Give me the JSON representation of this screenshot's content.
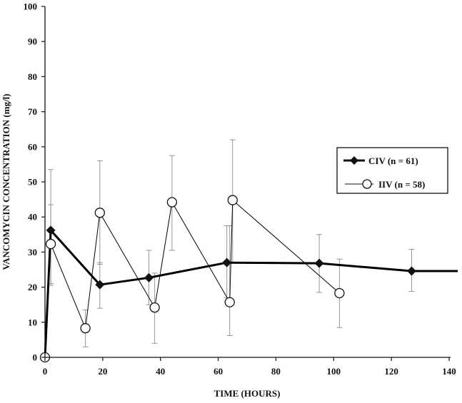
{
  "chart_data": {
    "type": "line",
    "xlabel": "TIME (HOURS)",
    "ylabel": "VANCOMYCIN CONCENTRATION (mg/l)",
    "xlim": [
      0,
      140
    ],
    "ylim": [
      0,
      100
    ],
    "xticks": [
      0,
      20,
      40,
      60,
      80,
      100,
      120,
      140
    ],
    "yticks": [
      0,
      10,
      20,
      30,
      40,
      50,
      60,
      70,
      80,
      90,
      100
    ],
    "grid": false,
    "legend_position": "right",
    "series": [
      {
        "name": "CIV (n = 61)",
        "marker": "filled-diamond",
        "line": "thick",
        "color": "#000000",
        "points": [
          {
            "x": 0,
            "y": 0
          },
          {
            "x": 2,
            "y": 36.2,
            "err": [
              20.5,
              43.5
            ]
          },
          {
            "x": 19,
            "y": 20.7,
            "err": [
              14.0,
              27.0
            ]
          },
          {
            "x": 36,
            "y": 22.7,
            "err": [
              15.0,
              30.5
            ]
          },
          {
            "x": 63,
            "y": 27.0,
            "err": [
              17.0,
              37.5
            ]
          },
          {
            "x": 95,
            "y": 26.8,
            "err": [
              18.5,
              35.0
            ]
          },
          {
            "x": 127,
            "y": 24.6,
            "err": [
              18.8,
              30.8
            ]
          },
          {
            "x": 143,
            "y": 24.6
          }
        ]
      },
      {
        "name": "IIV (n = 58)",
        "marker": "open-circle",
        "line": "thin",
        "color": "#000000",
        "points": [
          {
            "x": 0,
            "y": 0
          },
          {
            "x": 2,
            "y": 32.3,
            "err": [
              21.0,
              53.5
            ]
          },
          {
            "x": 14,
            "y": 8.3,
            "err": [
              3.0,
              13.5
            ]
          },
          {
            "x": 19,
            "y": 41.2,
            "err": [
              26.5,
              56.0
            ]
          },
          {
            "x": 38,
            "y": 14.2,
            "err": [
              4.0,
              24.0
            ]
          },
          {
            "x": 44,
            "y": 44.2,
            "err": [
              30.5,
              57.5
            ]
          },
          {
            "x": 64,
            "y": 15.7,
            "err": [
              6.2,
              37.5
            ]
          },
          {
            "x": 65,
            "y": 44.8,
            "err": [
              27.0,
              62.0
            ]
          },
          {
            "x": 102,
            "y": 18.3,
            "err": [
              8.5,
              28.0
            ]
          }
        ]
      }
    ]
  }
}
